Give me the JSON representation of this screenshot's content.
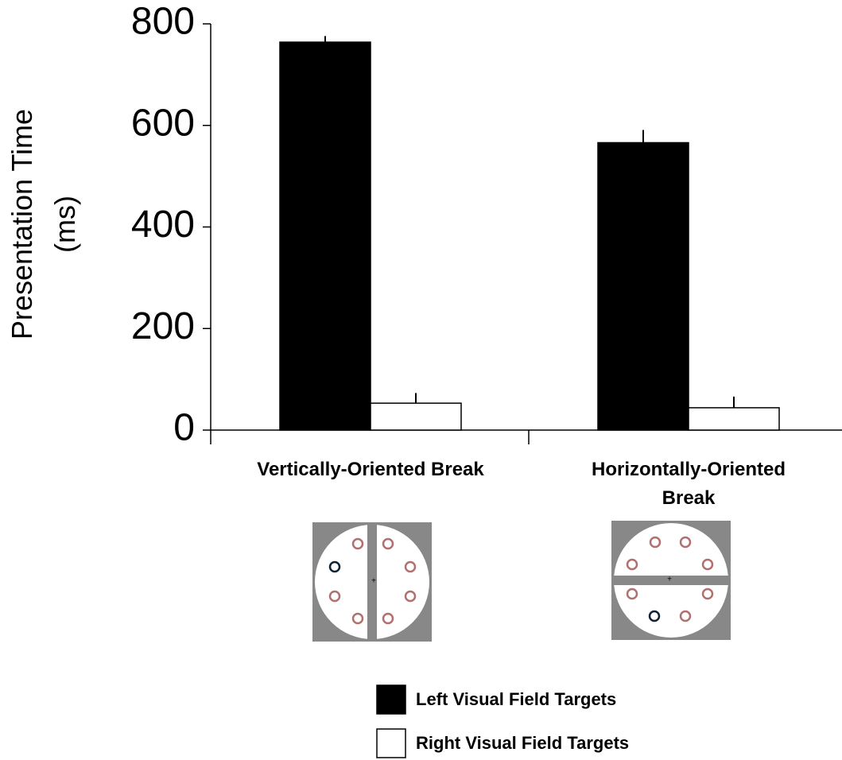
{
  "chart_data": {
    "type": "bar",
    "y_label": "Presentation Time (ms)",
    "categories": [
      "Vertically-Oriented Break",
      "Horizontally-Oriented Break"
    ],
    "series": [
      {
        "name": "Left Visual Field Targets",
        "color": "#000000",
        "values": [
          764,
          566
        ],
        "errors": [
          12,
          25
        ]
      },
      {
        "name": "Right Visual Field Targets",
        "color": "#ffffff",
        "values": [
          53,
          44
        ],
        "errors": [
          20,
          22
        ]
      }
    ],
    "ylim": [
      0,
      800
    ],
    "yticks": [
      0,
      200,
      400,
      600,
      800
    ],
    "grid": false
  }
}
